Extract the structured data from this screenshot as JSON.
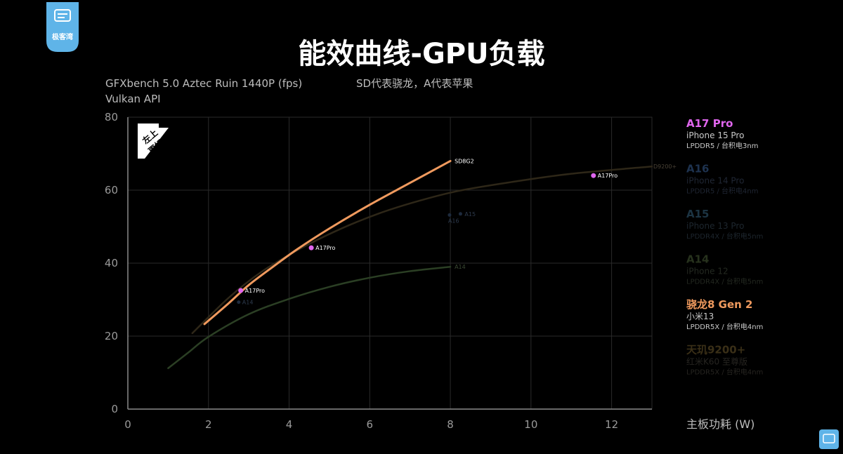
{
  "logo": {
    "text": "极客湾"
  },
  "chart_data": {
    "type": "line",
    "title": "能效曲线-GPU负载",
    "subtitle_lines": [
      "GFXbench 5.0 Aztec Ruin 1440P (fps)",
      "Vulkan API"
    ],
    "note": "SD代表骁龙，A代表苹果",
    "badge": [
      "左上",
      "更好"
    ],
    "xlabel": "主板功耗 (W)",
    "ylabel": "",
    "xlim": [
      0,
      13
    ],
    "ylim": [
      0,
      80
    ],
    "xticks": [
      0,
      2,
      4,
      6,
      8,
      10,
      12
    ],
    "yticks": [
      0,
      20,
      40,
      60,
      80
    ],
    "grid": true,
    "legend_position": "right",
    "series": [
      {
        "id": "d9200",
        "color": "#2e2718",
        "end_label": "D9200+",
        "points": [
          [
            1.6,
            20.8
          ],
          [
            2.5,
            30.5
          ],
          [
            3.3,
            37.5
          ],
          [
            4.2,
            43.5
          ],
          [
            5.2,
            49.0
          ],
          [
            6.2,
            53.5
          ],
          [
            7.2,
            57.0
          ],
          [
            8.2,
            59.8
          ],
          [
            9.5,
            62.2
          ],
          [
            11.0,
            64.5
          ],
          [
            13.0,
            66.5
          ]
        ]
      },
      {
        "id": "a14",
        "color": "#2b3f24",
        "end_label": "A14",
        "points": [
          [
            1.0,
            11.2
          ],
          [
            1.5,
            15.5
          ],
          [
            2.0,
            19.8
          ],
          [
            3.0,
            26.0
          ],
          [
            4.0,
            30.2
          ],
          [
            5.0,
            33.5
          ],
          [
            6.0,
            36.0
          ],
          [
            7.0,
            37.8
          ],
          [
            8.0,
            39.0
          ]
        ]
      },
      {
        "id": "sd8g2",
        "color": "#f09a5e",
        "end_label": "SD8G2",
        "points": [
          [
            1.9,
            23.3
          ],
          [
            2.5,
            29.0
          ],
          [
            3.0,
            34.0
          ],
          [
            3.6,
            39.0
          ],
          [
            4.2,
            43.8
          ],
          [
            5.0,
            49.5
          ],
          [
            6.0,
            56.0
          ],
          [
            7.0,
            62.0
          ],
          [
            8.0,
            68.0
          ]
        ]
      }
    ],
    "points": [
      {
        "label": "A17Pro",
        "x": 2.8,
        "y": 32.5,
        "color": "#e066ee"
      },
      {
        "label": "A17Pro",
        "x": 4.55,
        "y": 44.2,
        "color": "#e066ee"
      },
      {
        "label": "A17Pro",
        "x": 11.55,
        "y": 64.0,
        "color": "#e066ee"
      },
      {
        "label": "A14",
        "x": 2.75,
        "y": 29.3,
        "color": "#1d2a3d"
      },
      {
        "label": "A16",
        "x": 7.98,
        "y": 53.2,
        "color": "#1d2a3d"
      },
      {
        "label": "A15",
        "x": 8.25,
        "y": 53.5,
        "color": "#1d2a3d"
      }
    ],
    "legend": [
      {
        "name": "A17 Pro",
        "device": "iPhone 15 Pro",
        "spec": "LPDDR5 / 台积电3nm",
        "name_color": "#e066ee",
        "text_color": "#c9c9c9"
      },
      {
        "name": "A16",
        "device": "iPhone 14 Pro",
        "spec": "LPDDR5 / 台积电4nm",
        "name_color": "#1e3350",
        "text_color": "#1f2633"
      },
      {
        "name": "A15",
        "device": "iPhone 13 Pro",
        "spec": "LPDDR4X / 台积电5nm",
        "name_color": "#1c3443",
        "text_color": "#1d262e"
      },
      {
        "name": "A14",
        "device": "iPhone 12",
        "spec": "LPDDR4X / 台积电5nm",
        "name_color": "#27321d",
        "text_color": "#232820"
      },
      {
        "name": "骁龙8 Gen 2",
        "device": "小米13",
        "spec": "LPDDR5X / 台积电4nm",
        "name_color": "#f09a5e",
        "text_color": "#c9c9c9"
      },
      {
        "name": "天玑9200+",
        "device": "红米K60 至尊版",
        "spec": "LPDDR5X / 台积电4nm",
        "name_color": "#3a2f17",
        "text_color": "#262420"
      }
    ]
  }
}
